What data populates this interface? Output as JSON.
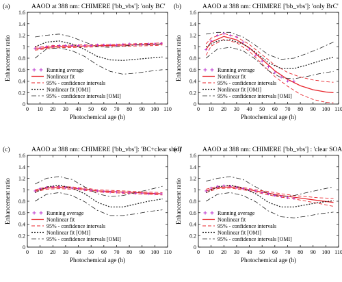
{
  "figure": {
    "common": {
      "xlabel": "Photochemical age (h)",
      "ylabel": "Enhancement ratio",
      "xlim": [
        0,
        110
      ],
      "ylim": [
        0,
        1.6
      ],
      "xticks": [
        0,
        10,
        20,
        30,
        40,
        50,
        60,
        70,
        80,
        90,
        100,
        110
      ],
      "yticks": [
        0,
        0.2,
        0.4,
        0.6,
        0.8,
        1,
        1.2,
        1.4,
        1.6
      ],
      "ytick_labels": [
        "0",
        "0.2",
        "0.4",
        "0.6",
        "0.8",
        "1",
        "1.2",
        "1.4",
        "1.6"
      ],
      "legend_entries": [
        {
          "label": "Running average",
          "style": "points"
        },
        {
          "label": "Nonlinear fit",
          "style": "solid"
        },
        {
          "label": "95% - confidence intervals",
          "style": "dashed"
        },
        {
          "label": "Nonlinear fit [OMI]",
          "style": "dotted"
        },
        {
          "label": "95% - confidence intervals [OMI]",
          "style": "dashdot"
        }
      ],
      "colors": {
        "points": "#bb33cc",
        "fit": "#e8232a",
        "ci": "#e8232a",
        "omi": "#222222"
      }
    }
  },
  "chart_data": [
    {
      "type": "line",
      "panel_label": "(a)",
      "title": "AAOD at 388 nm: CHIMERE ['bb_vbs']: 'only BC'",
      "xlabel": "Photochemical age (h)",
      "ylabel": "Enhancement ratio",
      "xlim": [
        0,
        110
      ],
      "ylim": [
        0,
        1.6
      ],
      "legend_placement": "bottom-left",
      "series": [
        {
          "name": "Running average",
          "style": "points",
          "x": [
            6,
            10,
            15,
            20,
            25,
            30,
            35,
            40,
            45,
            50,
            55,
            60,
            65,
            70,
            75,
            80,
            85,
            90,
            95,
            100,
            105
          ],
          "y": [
            0.97,
            0.98,
            1.0,
            1.01,
            1.02,
            1.02,
            1.02,
            1.02,
            1.02,
            1.02,
            1.03,
            1.03,
            1.03,
            1.03,
            1.04,
            1.05,
            1.04,
            1.04,
            1.05,
            1.05,
            1.06
          ]
        },
        {
          "name": "Nonlinear fit",
          "style": "solid",
          "x": [
            6,
            20,
            40,
            60,
            80,
            100,
            106
          ],
          "y": [
            0.96,
            1.0,
            1.01,
            1.02,
            1.03,
            1.04,
            1.05
          ]
        },
        {
          "name": "95% - confidence intervals (upper)",
          "style": "dashed",
          "x": [
            6,
            20,
            40,
            60,
            80,
            100,
            106
          ],
          "y": [
            0.99,
            1.02,
            1.03,
            1.04,
            1.05,
            1.06,
            1.07
          ]
        },
        {
          "name": "95% - confidence intervals (lower)",
          "style": "dashed",
          "x": [
            6,
            20,
            40,
            60,
            80,
            100,
            106
          ],
          "y": [
            0.94,
            0.98,
            0.99,
            1.0,
            1.01,
            1.02,
            1.03
          ]
        },
        {
          "name": "Nonlinear fit [OMI]",
          "style": "dotted",
          "x": [
            6,
            15,
            25,
            35,
            45,
            55,
            65,
            75,
            85,
            95,
            106
          ],
          "y": [
            1.0,
            1.08,
            1.1,
            1.05,
            0.95,
            0.83,
            0.77,
            0.76,
            0.78,
            0.8,
            0.82
          ]
        },
        {
          "name": "95% - confidence intervals [OMI] (upper)",
          "style": "dashdot",
          "x": [
            6,
            15,
            25,
            35,
            45,
            55,
            65,
            75,
            85,
            95,
            106
          ],
          "y": [
            1.17,
            1.2,
            1.22,
            1.17,
            1.08,
            1.0,
            0.99,
            1.01,
            1.03,
            1.03,
            1.05
          ]
        },
        {
          "name": "95% - confidence intervals [OMI] (lower)",
          "style": "dashdot",
          "x": [
            6,
            15,
            25,
            35,
            45,
            55,
            65,
            75,
            85,
            95,
            106
          ],
          "y": [
            0.8,
            0.96,
            0.98,
            0.93,
            0.83,
            0.68,
            0.57,
            0.52,
            0.54,
            0.57,
            0.6
          ]
        }
      ]
    },
    {
      "type": "line",
      "panel_label": "(b)",
      "title": "AAOD at 388 nm: CHIMERE ['bb_vbs']: 'only BrC'",
      "xlabel": "Photochemical age (h)",
      "ylabel": "Enhancement ratio",
      "xlim": [
        0,
        110
      ],
      "ylim": [
        0,
        1.6
      ],
      "legend_placement": "bottom-left",
      "series": [
        {
          "name": "Running average",
          "style": "points",
          "x": [
            6,
            10,
            15,
            20,
            25,
            30,
            35,
            40,
            45,
            50,
            55,
            60,
            65,
            70,
            75
          ],
          "y": [
            0.95,
            1.1,
            1.2,
            1.23,
            1.2,
            1.17,
            1.08,
            0.96,
            0.85,
            0.75,
            0.65,
            0.55,
            0.47,
            0.4,
            0.4
          ]
        },
        {
          "name": "Nonlinear fit",
          "style": "solid",
          "x": [
            6,
            10,
            20,
            30,
            40,
            50,
            60,
            70,
            80,
            90,
            100,
            106
          ],
          "y": [
            0.95,
            1.08,
            1.18,
            1.12,
            0.98,
            0.78,
            0.58,
            0.43,
            0.32,
            0.25,
            0.21,
            0.2
          ]
        },
        {
          "name": "95% - confidence intervals (upper)",
          "style": "dashed",
          "x": [
            6,
            10,
            20,
            30,
            40,
            50,
            60,
            70,
            80,
            90,
            100,
            106
          ],
          "y": [
            1.05,
            1.15,
            1.23,
            1.17,
            1.04,
            0.86,
            0.68,
            0.55,
            0.47,
            0.42,
            0.39,
            0.38
          ]
        },
        {
          "name": "95% - confidence intervals (lower)",
          "style": "dashed",
          "x": [
            6,
            10,
            20,
            30,
            40,
            50,
            60,
            70,
            80,
            90,
            100,
            106
          ],
          "y": [
            0.85,
            1.01,
            1.13,
            1.07,
            0.92,
            0.7,
            0.48,
            0.31,
            0.17,
            0.08,
            0.03,
            0.02
          ]
        },
        {
          "name": "Nonlinear fit [OMI]",
          "style": "dotted",
          "x": [
            6,
            15,
            25,
            35,
            45,
            55,
            65,
            75,
            85,
            95,
            106
          ],
          "y": [
            1.0,
            1.1,
            1.12,
            1.05,
            0.9,
            0.72,
            0.62,
            0.62,
            0.68,
            0.75,
            0.82
          ]
        },
        {
          "name": "95% - confidence intervals [OMI] (upper)",
          "style": "dashdot",
          "x": [
            6,
            15,
            25,
            35,
            45,
            55,
            65,
            75,
            85,
            95,
            106
          ],
          "y": [
            1.22,
            1.25,
            1.25,
            1.17,
            1.02,
            0.86,
            0.78,
            0.8,
            0.88,
            0.97,
            1.08
          ]
        },
        {
          "name": "95% - confidence intervals [OMI] (lower)",
          "style": "dashdot",
          "x": [
            6,
            15,
            25,
            35,
            45,
            55,
            65,
            75,
            85,
            95,
            106
          ],
          "y": [
            0.8,
            0.96,
            0.99,
            0.93,
            0.78,
            0.58,
            0.46,
            0.44,
            0.48,
            0.53,
            0.57
          ]
        }
      ]
    },
    {
      "type": "line",
      "panel_label": "(c)",
      "title": "AAOD at 388 nm: CHIMERE ['bb_vbs']: 'BC+clear shell'",
      "xlabel": "Photochemical age (h)",
      "ylabel": "Enhancement ratio",
      "xlim": [
        0,
        110
      ],
      "ylim": [
        0,
        1.6
      ],
      "legend_placement": "bottom-left",
      "series": [
        {
          "name": "Running average",
          "style": "points",
          "x": [
            6,
            10,
            15,
            20,
            25,
            30,
            35,
            40,
            45,
            50,
            55,
            60,
            65,
            70,
            75,
            80,
            85,
            90,
            95,
            100,
            105
          ],
          "y": [
            0.98,
            1.02,
            1.04,
            1.05,
            1.05,
            1.04,
            1.03,
            1.02,
            1.0,
            0.99,
            0.98,
            0.97,
            0.96,
            0.96,
            0.95,
            0.95,
            0.94,
            0.94,
            0.93,
            0.93,
            0.93
          ]
        },
        {
          "name": "Nonlinear fit",
          "style": "solid",
          "x": [
            6,
            15,
            25,
            35,
            45,
            55,
            65,
            75,
            85,
            95,
            106
          ],
          "y": [
            0.98,
            1.03,
            1.04,
            1.03,
            1.01,
            0.98,
            0.97,
            0.96,
            0.95,
            0.94,
            0.93
          ]
        },
        {
          "name": "95% - confidence intervals (upper)",
          "style": "dashed",
          "x": [
            6,
            15,
            25,
            35,
            45,
            55,
            65,
            75,
            85,
            95,
            106
          ],
          "y": [
            1.0,
            1.05,
            1.06,
            1.05,
            1.03,
            1.0,
            0.99,
            0.98,
            0.97,
            0.96,
            0.95
          ]
        },
        {
          "name": "95% - confidence intervals (lower)",
          "style": "dashed",
          "x": [
            6,
            15,
            25,
            35,
            45,
            55,
            65,
            75,
            85,
            95,
            106
          ],
          "y": [
            0.96,
            1.01,
            1.02,
            1.01,
            0.99,
            0.96,
            0.95,
            0.94,
            0.93,
            0.92,
            0.91
          ]
        },
        {
          "name": "Nonlinear fit [OMI]",
          "style": "dotted",
          "x": [
            6,
            15,
            25,
            35,
            45,
            55,
            65,
            75,
            85,
            95,
            106
          ],
          "y": [
            0.95,
            1.05,
            1.08,
            1.03,
            0.93,
            0.78,
            0.7,
            0.7,
            0.75,
            0.8,
            0.84
          ]
        },
        {
          "name": "95% - confidence intervals [OMI] (upper)",
          "style": "dashdot",
          "x": [
            6,
            15,
            25,
            35,
            45,
            55,
            65,
            75,
            85,
            95,
            106
          ],
          "y": [
            1.1,
            1.2,
            1.23,
            1.18,
            1.05,
            0.93,
            0.88,
            0.9,
            0.95,
            1.0,
            1.06
          ]
        },
        {
          "name": "95% - confidence intervals [OMI] (lower)",
          "style": "dashdot",
          "x": [
            6,
            15,
            25,
            35,
            45,
            55,
            65,
            75,
            85,
            95,
            106
          ],
          "y": [
            0.8,
            0.92,
            0.95,
            0.9,
            0.79,
            0.64,
            0.55,
            0.55,
            0.58,
            0.62,
            0.65
          ]
        }
      ]
    },
    {
      "type": "line",
      "panel_label": "(d)",
      "title": "AAOD at 388 nm: CHIMERE ['bb_vbs'] : 'clear SOA'",
      "xlabel": "Photochemical age (h)",
      "ylabel": "Enhancement ratio",
      "xlim": [
        0,
        110
      ],
      "ylim": [
        0,
        1.6
      ],
      "legend_placement": "bottom-left",
      "series": [
        {
          "name": "Running average",
          "style": "points",
          "x": [
            6,
            10,
            15,
            20,
            25,
            30,
            35,
            40,
            45,
            50,
            55,
            60,
            65,
            70,
            75
          ],
          "y": [
            0.98,
            1.03,
            1.06,
            1.07,
            1.06,
            1.04,
            1.02,
            1.0,
            0.98,
            0.95,
            0.93,
            0.9,
            0.88,
            0.86,
            0.85
          ]
        },
        {
          "name": "Nonlinear fit",
          "style": "solid",
          "x": [
            6,
            15,
            25,
            35,
            45,
            55,
            65,
            75,
            85,
            95,
            106
          ],
          "y": [
            0.98,
            1.04,
            1.05,
            1.02,
            0.98,
            0.94,
            0.9,
            0.87,
            0.84,
            0.81,
            0.78
          ]
        },
        {
          "name": "95% - confidence intervals (upper)",
          "style": "dashed",
          "x": [
            6,
            15,
            25,
            35,
            45,
            55,
            65,
            75,
            85,
            95,
            106
          ],
          "y": [
            1.01,
            1.06,
            1.07,
            1.04,
            1.0,
            0.97,
            0.93,
            0.9,
            0.88,
            0.86,
            0.85
          ]
        },
        {
          "name": "95% - confidence intervals (lower)",
          "style": "dashed",
          "x": [
            6,
            15,
            25,
            35,
            45,
            55,
            65,
            75,
            85,
            95,
            106
          ],
          "y": [
            0.95,
            1.02,
            1.03,
            1.0,
            0.96,
            0.91,
            0.87,
            0.84,
            0.8,
            0.76,
            0.71
          ]
        },
        {
          "name": "Nonlinear fit [OMI]",
          "style": "dotted",
          "x": [
            6,
            15,
            25,
            35,
            45,
            55,
            65,
            75,
            85,
            95,
            106
          ],
          "y": [
            0.95,
            1.05,
            1.08,
            1.03,
            0.93,
            0.78,
            0.7,
            0.7,
            0.74,
            0.78,
            0.81
          ]
        },
        {
          "name": "95% - confidence intervals [OMI] (upper)",
          "style": "dashdot",
          "x": [
            6,
            15,
            25,
            35,
            45,
            55,
            65,
            75,
            85,
            95,
            106
          ],
          "y": [
            1.15,
            1.2,
            1.23,
            1.18,
            1.05,
            0.93,
            0.88,
            0.9,
            0.95,
            1.0,
            1.05
          ]
        },
        {
          "name": "95% - confidence intervals [OMI] (lower)",
          "style": "dashdot",
          "x": [
            6,
            15,
            25,
            35,
            45,
            55,
            65,
            75,
            85,
            95,
            106
          ],
          "y": [
            0.8,
            0.92,
            0.95,
            0.9,
            0.79,
            0.63,
            0.53,
            0.51,
            0.54,
            0.58,
            0.61
          ]
        }
      ]
    }
  ]
}
